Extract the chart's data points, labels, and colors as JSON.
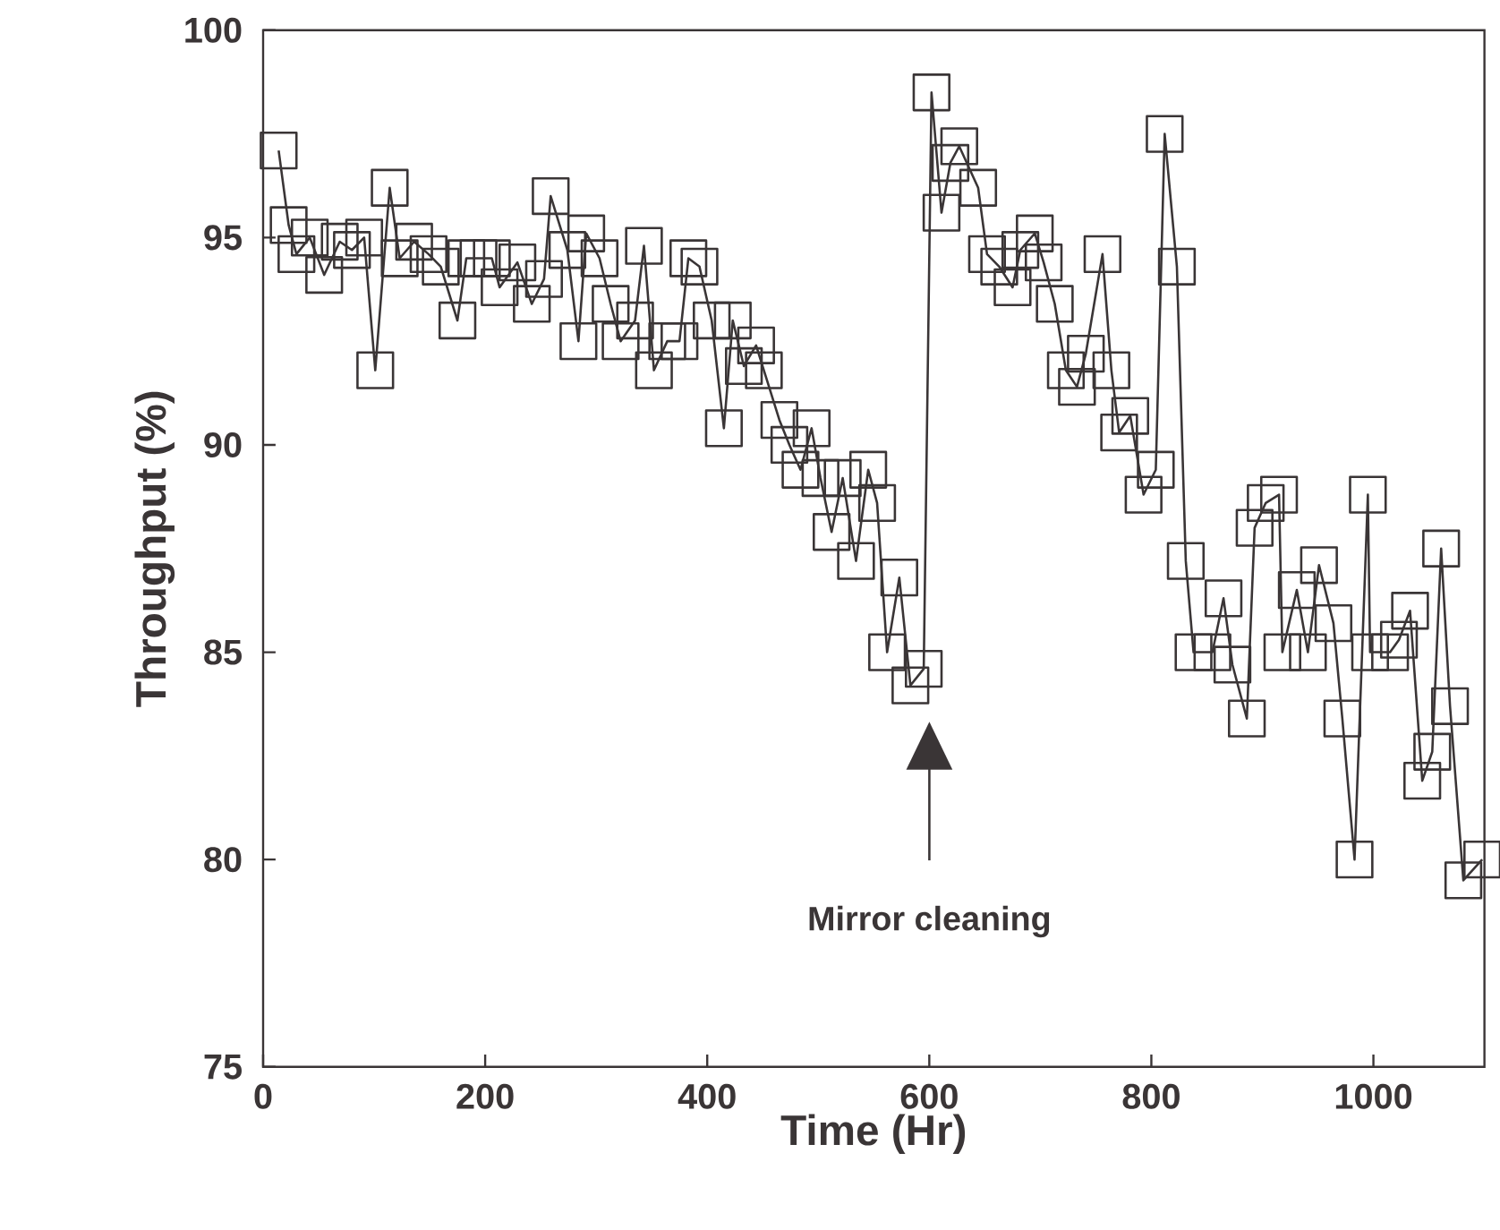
{
  "chart_data": {
    "type": "line",
    "xlabel": "Time (Hr)",
    "ylabel": "Throughput (%)",
    "xlim": [
      0,
      1100
    ],
    "ylim": [
      75,
      100
    ],
    "xticks": [
      0,
      200,
      400,
      600,
      800,
      1000
    ],
    "yticks": [
      75,
      80,
      85,
      90,
      95,
      100
    ],
    "marker": "square",
    "line_style": "solid",
    "annotations": [
      "Mirror cleaning"
    ],
    "series": [
      {
        "color": "#3a3536",
        "x": [
          14,
          23,
          30,
          42,
          55,
          69,
          80,
          91,
          101,
          114,
          123,
          136,
          149,
          160,
          175,
          183,
          194,
          206,
          213,
          229,
          242,
          253,
          259,
          274,
          284,
          291,
          303,
          313,
          322,
          335,
          343,
          352,
          364,
          375,
          383,
          393,
          404,
          415,
          423,
          433,
          444,
          451,
          465,
          474,
          484,
          494,
          502,
          512,
          522,
          534,
          545,
          553,
          562,
          573,
          583,
          595,
          602,
          611,
          619,
          627,
          644,
          652,
          663,
          675,
          682,
          695,
          703,
          713,
          723,
          733,
          741,
          756,
          764,
          771,
          781,
          793,
          804,
          812,
          823,
          831,
          838,
          855,
          865,
          873,
          886,
          893,
          903,
          915,
          918,
          931,
          941,
          951,
          964,
          972,
          983,
          995,
          997,
          1015,
          1023,
          1033,
          1044,
          1053,
          1061,
          1069,
          1081,
          1098
        ],
        "values": [
          97.1,
          95.3,
          94.6,
          95.0,
          94.1,
          94.9,
          94.7,
          95.0,
          91.8,
          96.2,
          94.5,
          94.9,
          94.6,
          94.3,
          93.0,
          94.5,
          94.5,
          94.5,
          93.8,
          94.4,
          93.4,
          94.0,
          96.0,
          94.7,
          92.5,
          95.1,
          94.5,
          93.4,
          92.5,
          93.0,
          94.8,
          91.8,
          92.5,
          92.5,
          94.5,
          94.3,
          93.0,
          90.4,
          93.0,
          91.9,
          92.4,
          91.8,
          90.6,
          90.0,
          89.4,
          90.4,
          89.2,
          87.9,
          89.2,
          87.2,
          89.4,
          88.6,
          85.0,
          86.8,
          84.2,
          84.6,
          98.5,
          95.6,
          96.8,
          97.2,
          96.2,
          94.6,
          94.3,
          93.8,
          94.7,
          95.1,
          94.4,
          93.4,
          91.8,
          91.4,
          92.2,
          94.6,
          91.8,
          90.3,
          90.7,
          88.8,
          89.4,
          97.5,
          94.3,
          87.2,
          85.0,
          85.0,
          86.3,
          84.7,
          83.4,
          88.0,
          88.6,
          88.8,
          85.0,
          86.5,
          85.0,
          87.1,
          85.7,
          83.4,
          80.0,
          88.8,
          85.0,
          85.0,
          85.3,
          86.0,
          81.9,
          82.6,
          87.5,
          83.7,
          79.5,
          80.0
        ]
      }
    ]
  }
}
